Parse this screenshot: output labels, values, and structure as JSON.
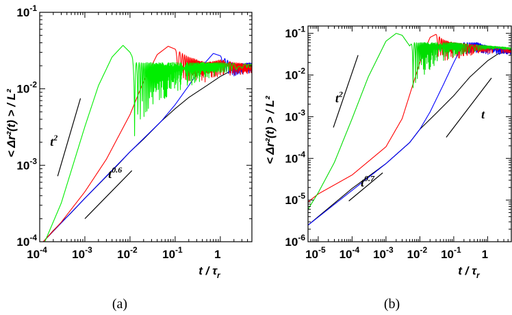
{
  "chart_data": [
    {
      "type": "line",
      "panel_label": "(a)",
      "xlabel": "t / τ",
      "xlabel_sub": "r",
      "ylabel": "< Δr²(t) > / L²",
      "xscale": "log",
      "yscale": "log",
      "xlim": [
        0.0001,
        5
      ],
      "ylim": [
        0.0001,
        0.1
      ],
      "x_ticks": [
        {
          "value": 0.0001,
          "base": "10",
          "exp": "-4"
        },
        {
          "value": 0.001,
          "base": "10",
          "exp": "-3"
        },
        {
          "value": 0.01,
          "base": "10",
          "exp": "-2"
        },
        {
          "value": 0.1,
          "base": "10",
          "exp": "-1"
        },
        {
          "value": 1,
          "base": "1",
          "exp": ""
        }
      ],
      "y_ticks": [
        {
          "value": 0.0001,
          "base": "10",
          "exp": "-4"
        },
        {
          "value": 0.001,
          "base": "10",
          "exp": "-3"
        },
        {
          "value": 0.01,
          "base": "10",
          "exp": "-2"
        },
        {
          "value": 0.1,
          "base": "10",
          "exp": "-1"
        }
      ],
      "series": [
        {
          "color": "#000000",
          "x": [
            0.00012,
            0.0002,
            0.0005,
            0.001,
            0.002,
            0.005,
            0.01,
            0.02,
            0.05,
            0.1,
            0.2,
            0.5,
            1,
            2,
            5
          ],
          "y": [
            0.0001,
            0.00014,
            0.00024,
            0.00037,
            0.00056,
            0.00097,
            0.0015,
            0.0022,
            0.0038,
            0.0055,
            0.0077,
            0.011,
            0.0145,
            0.018,
            0.021
          ]
        },
        {
          "color": "#0000ff",
          "x": [
            0.00012,
            0.001,
            0.01,
            0.05,
            0.1,
            0.2,
            0.4,
            0.7,
            1,
            2,
            5
          ],
          "y": [
            0.0001,
            0.00037,
            0.0015,
            0.0038,
            0.0062,
            0.011,
            0.02,
            0.029,
            0.027,
            0.021,
            0.022
          ],
          "osc_from": 1,
          "osc_amp": 0.35
        },
        {
          "color": "#ff0000",
          "x": [
            0.00012,
            0.0003,
            0.001,
            0.003,
            0.01,
            0.02,
            0.04,
            0.07,
            0.1,
            0.2,
            0.5,
            1,
            2,
            5
          ],
          "y": [
            0.0001,
            0.00018,
            0.00045,
            0.0012,
            0.0046,
            0.0125,
            0.028,
            0.036,
            0.033,
            0.026,
            0.022,
            0.024,
            0.022,
            0.021
          ],
          "osc_from": 0.1,
          "osc_amp": 0.6
        },
        {
          "color": "#00ee00",
          "x": [
            0.00013,
            0.0003,
            0.001,
            0.002,
            0.004,
            0.007,
            0.01,
            0.013,
            0.05,
            0.1,
            0.3,
            1,
            5
          ],
          "y": [
            0.0001,
            0.00032,
            0.0032,
            0.011,
            0.026,
            0.037,
            0.03,
            0.022,
            0.022,
            0.022,
            0.022,
            0.022,
            0.021
          ],
          "osc_from": 0.011,
          "osc_amp": 0.92
        }
      ],
      "annotations": [
        {
          "base": "t",
          "exp": "2",
          "x1": 0.00025,
          "y1": 0.00072,
          "x2": 0.0008,
          "y2": 0.0075,
          "lx": 0.00017,
          "ly": 0.0018
        },
        {
          "base": "t",
          "exp": "0.6",
          "x1": 0.001,
          "y1": 0.0002,
          "x2": 0.011,
          "y2": 0.00085,
          "lx": 0.0033,
          "ly": 0.00068
        }
      ]
    },
    {
      "type": "line",
      "panel_label": "(b)",
      "xlabel": "t / τ",
      "xlabel_sub": "r",
      "ylabel": "< Δr²(t) > / L²",
      "xscale": "log",
      "yscale": "log",
      "xlim": [
        5e-06,
        5
      ],
      "ylim": [
        1e-06,
        0.15
      ],
      "x_ticks": [
        {
          "value": 1e-05,
          "base": "10",
          "exp": "-5"
        },
        {
          "value": 0.0001,
          "base": "10",
          "exp": "-4"
        },
        {
          "value": 0.001,
          "base": "10",
          "exp": "-3"
        },
        {
          "value": 0.01,
          "base": "10",
          "exp": "-2"
        },
        {
          "value": 0.1,
          "base": "10",
          "exp": "-1"
        },
        {
          "value": 1,
          "base": "1",
          "exp": ""
        }
      ],
      "y_ticks": [
        {
          "value": 1e-06,
          "base": "10",
          "exp": "-6"
        },
        {
          "value": 1e-05,
          "base": "10",
          "exp": "-5"
        },
        {
          "value": 0.0001,
          "base": "10",
          "exp": "-4"
        },
        {
          "value": 0.001,
          "base": "10",
          "exp": "-3"
        },
        {
          "value": 0.01,
          "base": "10",
          "exp": "-2"
        },
        {
          "value": 0.1,
          "base": "10",
          "exp": "-1"
        }
      ],
      "series": [
        {
          "color": "#000000",
          "x": [
            5e-06,
            1e-05,
            0.0001,
            0.001,
            0.005,
            0.01,
            0.03,
            0.1,
            0.3,
            1,
            2,
            5
          ],
          "y": [
            2.5e-06,
            4e-06,
            1.9e-05,
            7.5e-05,
            0.00024,
            0.0005,
            0.0012,
            0.0032,
            0.009,
            0.022,
            0.032,
            0.038
          ]
        },
        {
          "color": "#0000ff",
          "x": [
            5e-06,
            0.001,
            0.005,
            0.01,
            0.02,
            0.05,
            0.1,
            0.2,
            0.5,
            1,
            2,
            5
          ],
          "y": [
            2.5e-06,
            7.5e-05,
            0.00024,
            0.0005,
            0.0013,
            0.006,
            0.02,
            0.06,
            0.06,
            0.05,
            0.045,
            0.04
          ],
          "osc_from": 0.2,
          "osc_amp": 0.5
        },
        {
          "color": "#ff0000",
          "x": [
            5e-06,
            1e-05,
            0.0001,
            0.001,
            0.003,
            0.01,
            0.02,
            0.03,
            0.05,
            0.1,
            1,
            5
          ],
          "y": [
            9e-06,
            1.4e-05,
            4e-05,
            0.00019,
            0.0009,
            0.02,
            0.08,
            0.095,
            0.07,
            0.06,
            0.05,
            0.04
          ],
          "osc_from": 0.03,
          "osc_amp": 0.75
        },
        {
          "color": "#00dd00",
          "x": [
            5e-06,
            1e-05,
            3e-05,
            0.0001,
            0.0003,
            0.001,
            0.002,
            0.003,
            0.005,
            0.006,
            0.1,
            5
          ],
          "y": [
            6e-06,
            1.5e-05,
            8e-05,
            0.0009,
            0.009,
            0.065,
            0.1,
            0.09,
            0.05,
            0.06,
            0.06,
            0.045
          ],
          "osc_from": 0.0055,
          "osc_amp": 0.97
        }
      ],
      "annotations": [
        {
          "base": "t",
          "exp": "2",
          "x1": 2.8e-05,
          "y1": 0.00055,
          "x2": 0.00015,
          "y2": 0.03,
          "lx": 3.2e-05,
          "ly": 0.0022
        },
        {
          "base": "t",
          "exp": "0.7",
          "x1": 8e-05,
          "y1": 9.5e-06,
          "x2": 0.0008,
          "y2": 4.5e-05,
          "lx": 0.00018,
          "ly": 2.1e-05
        },
        {
          "base": "t",
          "exp": "",
          "x1": 0.06,
          "y1": 0.00032,
          "x2": 1.3,
          "y2": 0.0085,
          "lx": 0.65,
          "ly": 0.0009
        }
      ]
    }
  ]
}
